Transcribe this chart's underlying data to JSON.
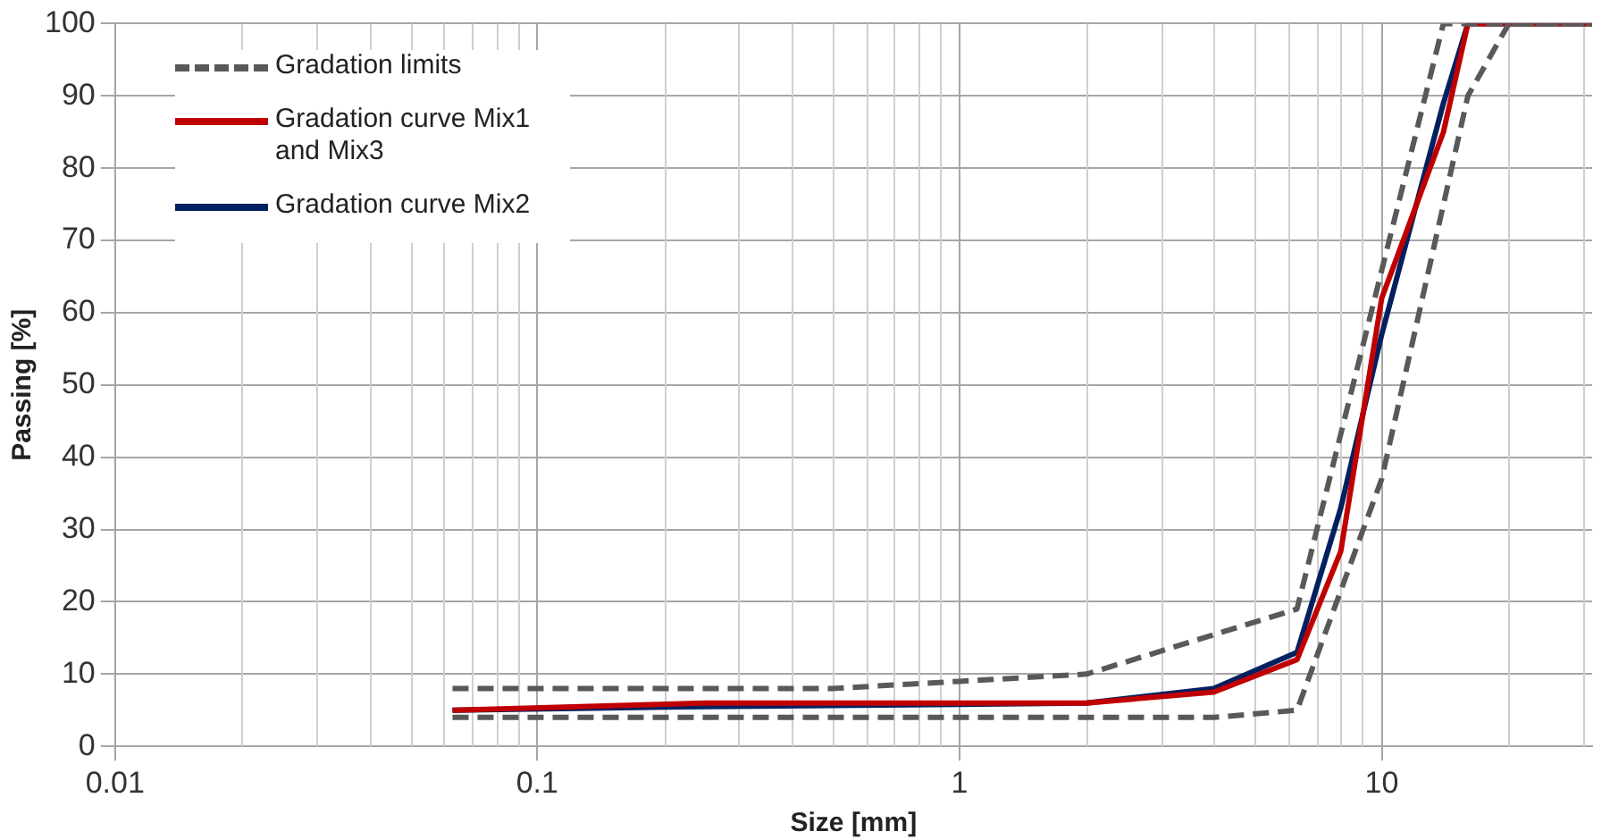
{
  "chart_data": {
    "type": "line",
    "xlabel": "Size [mm]",
    "ylabel": "Passing [%]",
    "log": "x",
    "xlim": [
      0.01,
      31.5
    ],
    "xticks": [
      0.01,
      0.1,
      1,
      10
    ],
    "ylim": [
      0,
      100
    ],
    "yticks": [
      0,
      10,
      20,
      30,
      40,
      50,
      60,
      70,
      80,
      90,
      100
    ],
    "grid": true,
    "legend": "top left",
    "marker": "none",
    "series": [
      {
        "name": "Gradation limits",
        "color": "#595959",
        "line_style": "dashed",
        "x": [
          0.063,
          0.5,
          1,
          2,
          6.3,
          14,
          31.5
        ],
        "values": [
          8,
          8,
          9,
          10,
          19,
          100,
          100
        ]
      },
      {
        "color": "#595959",
        "line_style": "dashed",
        "x": [
          0.063,
          1,
          2,
          4,
          6.3,
          10,
          16,
          20,
          31.5
        ],
        "values": [
          4,
          4,
          4,
          4,
          5,
          37,
          90,
          100,
          100
        ]
      },
      {
        "name": "Gradation curve Mix1 and Mix3",
        "color": "#c00000",
        "line_style": "solid",
        "x": [
          0.063,
          0.25,
          1,
          2,
          4,
          6.3,
          8,
          10,
          14,
          16,
          31.5
        ],
        "values": [
          5,
          6,
          6,
          6,
          7.5,
          12,
          27,
          62,
          85,
          100,
          100
        ]
      },
      {
        "name": "Gradation curve Mix2",
        "color": "#002060",
        "line_style": "solid",
        "x": [
          0.063,
          0.25,
          1,
          2,
          4,
          6.3,
          8,
          10,
          14,
          16,
          31.5
        ],
        "values": [
          5,
          5.5,
          5.8,
          6,
          8,
          13,
          33,
          57,
          89,
          100,
          100
        ]
      }
    ]
  }
}
